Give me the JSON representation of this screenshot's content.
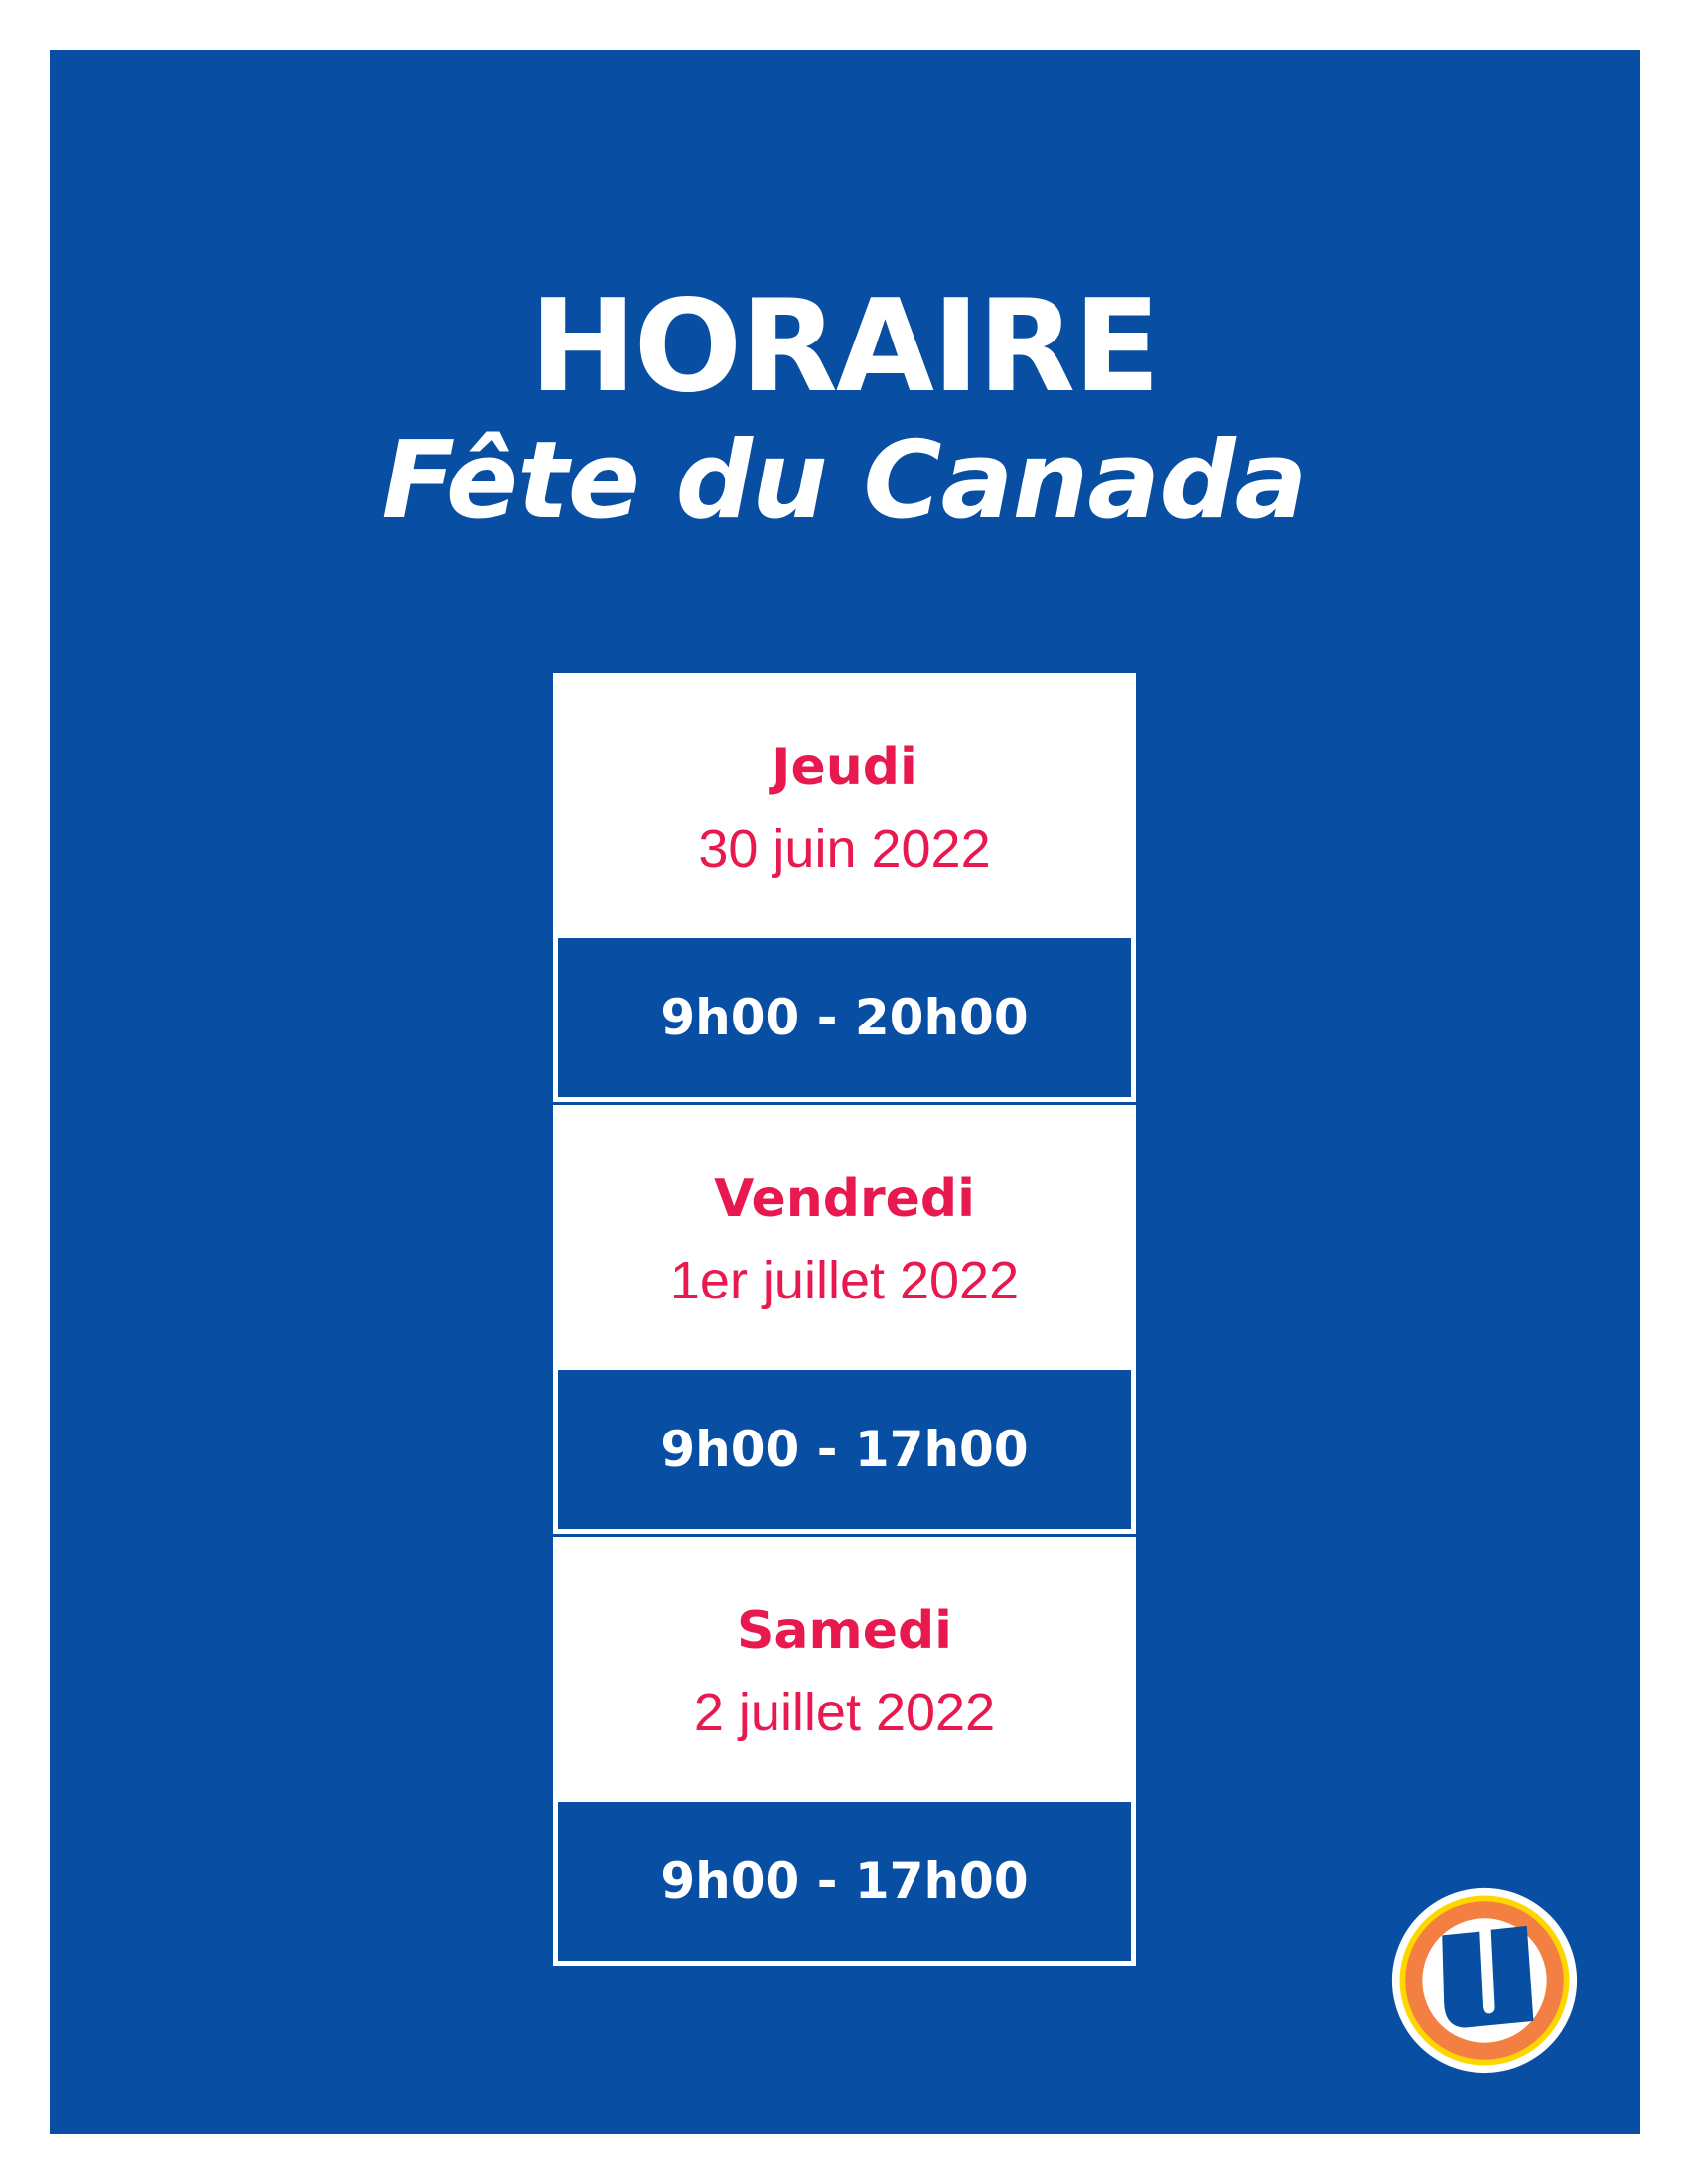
{
  "header": {
    "title": "HORAIRE",
    "subtitle": "Fête du Canada"
  },
  "schedule": [
    {
      "day": "Jeudi",
      "date": "30 juin 2022",
      "hours": "9h00 - 20h00"
    },
    {
      "day": "Vendredi",
      "date": "1er juillet 2022",
      "hours": "9h00 - 17h00"
    },
    {
      "day": "Samedi",
      "date": "2 juillet 2022",
      "hours": "9h00 - 17h00"
    }
  ],
  "logo": {
    "name": "u-logo",
    "text": "U"
  },
  "colors": {
    "background": "#084fa3",
    "accent": "#e8194f",
    "logo_orange": "#f47f43",
    "logo_yellow": "#ffd700"
  }
}
